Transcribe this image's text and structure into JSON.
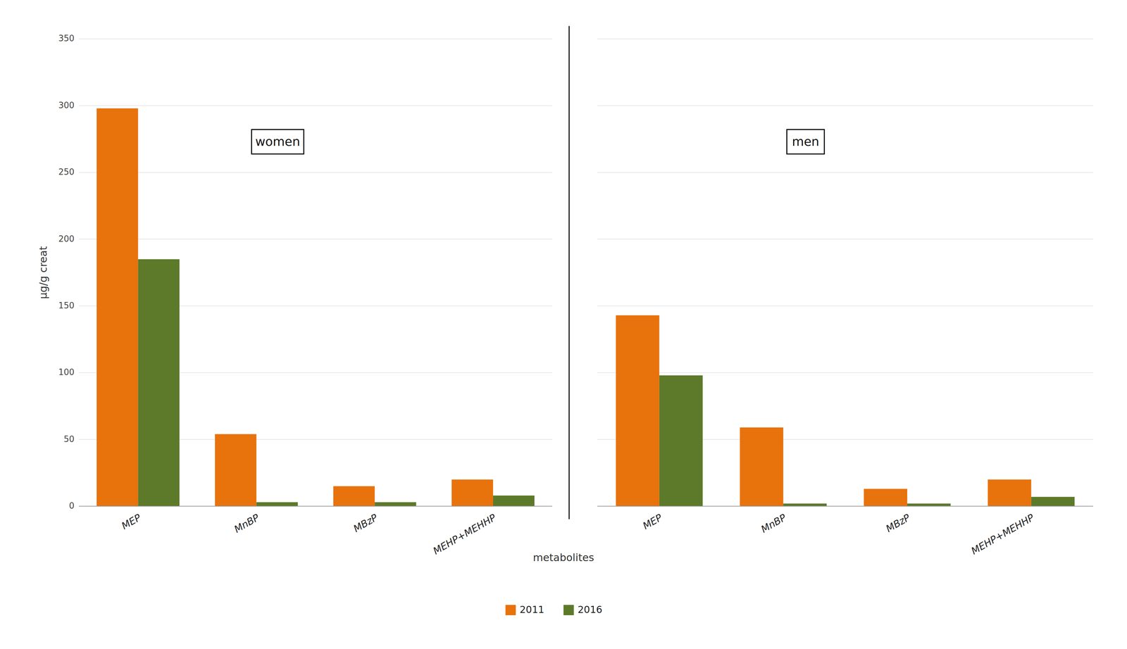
{
  "chart_data": [
    {
      "type": "bar",
      "title": "women",
      "y_label": "μg/g creat",
      "x_label": "metabolites",
      "categories": [
        "MEP",
        "MnBP",
        "MBzP",
        "MEHP+MEHHP"
      ],
      "series": [
        {
          "name": "2011",
          "color": "#E8720C",
          "values": [
            298,
            54,
            15,
            20
          ]
        },
        {
          "name": "2016",
          "color": "#5C7A29",
          "values": [
            185,
            3,
            3,
            8
          ]
        }
      ],
      "ylim": [
        0,
        350
      ],
      "yticks": [
        0,
        50,
        100,
        150,
        200,
        250,
        300,
        350
      ],
      "grid": true,
      "legend": "bottom"
    },
    {
      "type": "bar",
      "title": "men",
      "categories": [
        "MEP",
        "MnBP",
        "MBzP",
        "MEHP+MEHHP"
      ],
      "series": [
        {
          "name": "2011",
          "color": "#E8720C",
          "values": [
            143,
            59,
            13,
            20
          ]
        },
        {
          "name": "2016",
          "color": "#5C7A29",
          "values": [
            98,
            2,
            2,
            7
          ]
        }
      ],
      "ylim": [
        0,
        350
      ],
      "yticks": [
        0,
        50,
        100,
        150,
        200,
        250,
        300,
        350
      ],
      "grid": true,
      "tick_labels": "x"
    }
  ]
}
